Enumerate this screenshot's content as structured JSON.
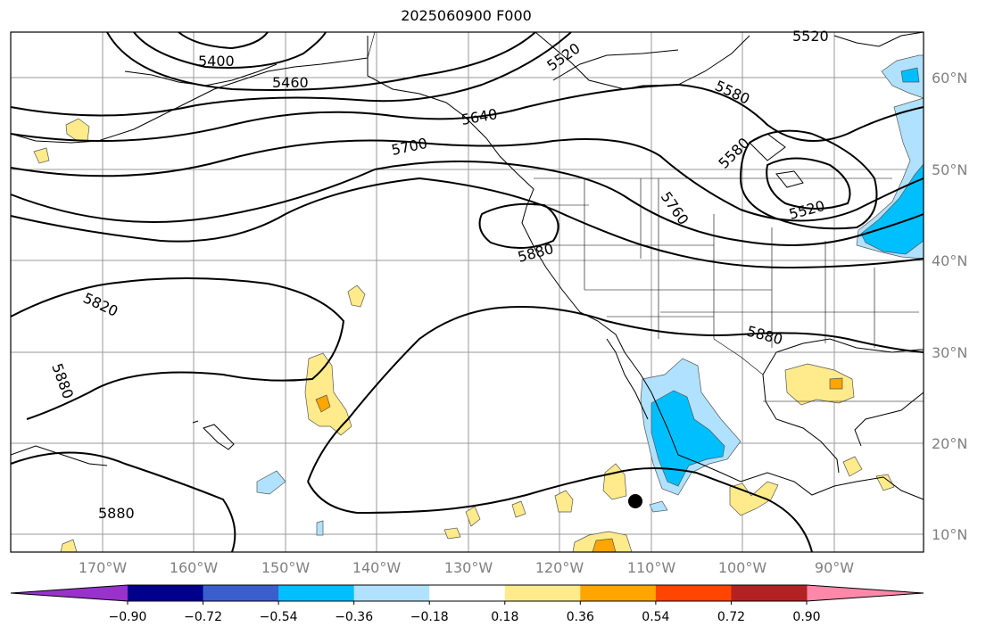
{
  "title": "2025060900 F000",
  "map": {
    "lon_labels": [
      "170°W",
      "160°W",
      "150°W",
      "140°W",
      "130°W",
      "120°W",
      "110°W",
      "100°W",
      "90°W"
    ],
    "lat_labels": [
      "60°N",
      "50°N",
      "40°N",
      "30°N",
      "20°N",
      "10°N"
    ],
    "contour_labels": [
      "5400",
      "5460",
      "5520",
      "5520",
      "5580",
      "5580",
      "5640",
      "5700",
      "5760",
      "5520",
      "5880",
      "5820",
      "5880",
      "5880",
      "5880"
    ]
  },
  "colorbar": {
    "ticks": [
      "−0.90",
      "−0.72",
      "−0.54",
      "−0.36",
      "−0.18",
      "0.18",
      "0.36",
      "0.54",
      "0.72",
      "0.90"
    ],
    "colors": [
      "#9932cc",
      "#00008b",
      "#3a5fcd",
      "#00bfff",
      "#b0e2ff",
      "#ffffff",
      "#ffeb8b",
      "#ffa500",
      "#ff4500",
      "#b22222",
      "#ff88aa"
    ]
  }
}
